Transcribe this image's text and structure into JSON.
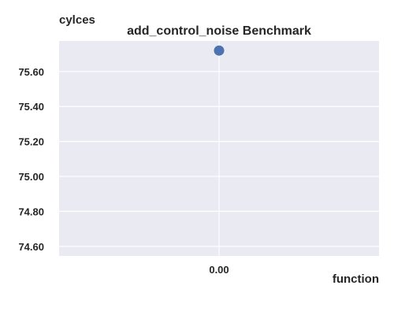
{
  "chart_data": {
    "type": "scatter",
    "title": "add_control_noise Benchmark",
    "xlabel": "function",
    "ylabel": "cylces",
    "x": [
      0.0
    ],
    "series": [
      {
        "values": [
          75.72
        ]
      }
    ],
    "xlim": [
      -0.5,
      0.5
    ],
    "ylim": [
      74.545,
      75.775
    ],
    "xticks": [
      0.0
    ],
    "xtick_labels": [
      "0.00"
    ],
    "yticks": [
      74.6,
      74.8,
      75.0,
      75.2,
      75.4,
      75.6
    ],
    "ytick_labels": [
      "74.60",
      "74.80",
      "75.00",
      "75.20",
      "75.40",
      "75.60"
    ],
    "grid": true,
    "legend": "none",
    "colors": {
      "background": "#eaeaf2",
      "grid": "#ffffff",
      "point": "#4c72b0",
      "text": "#262626"
    }
  }
}
